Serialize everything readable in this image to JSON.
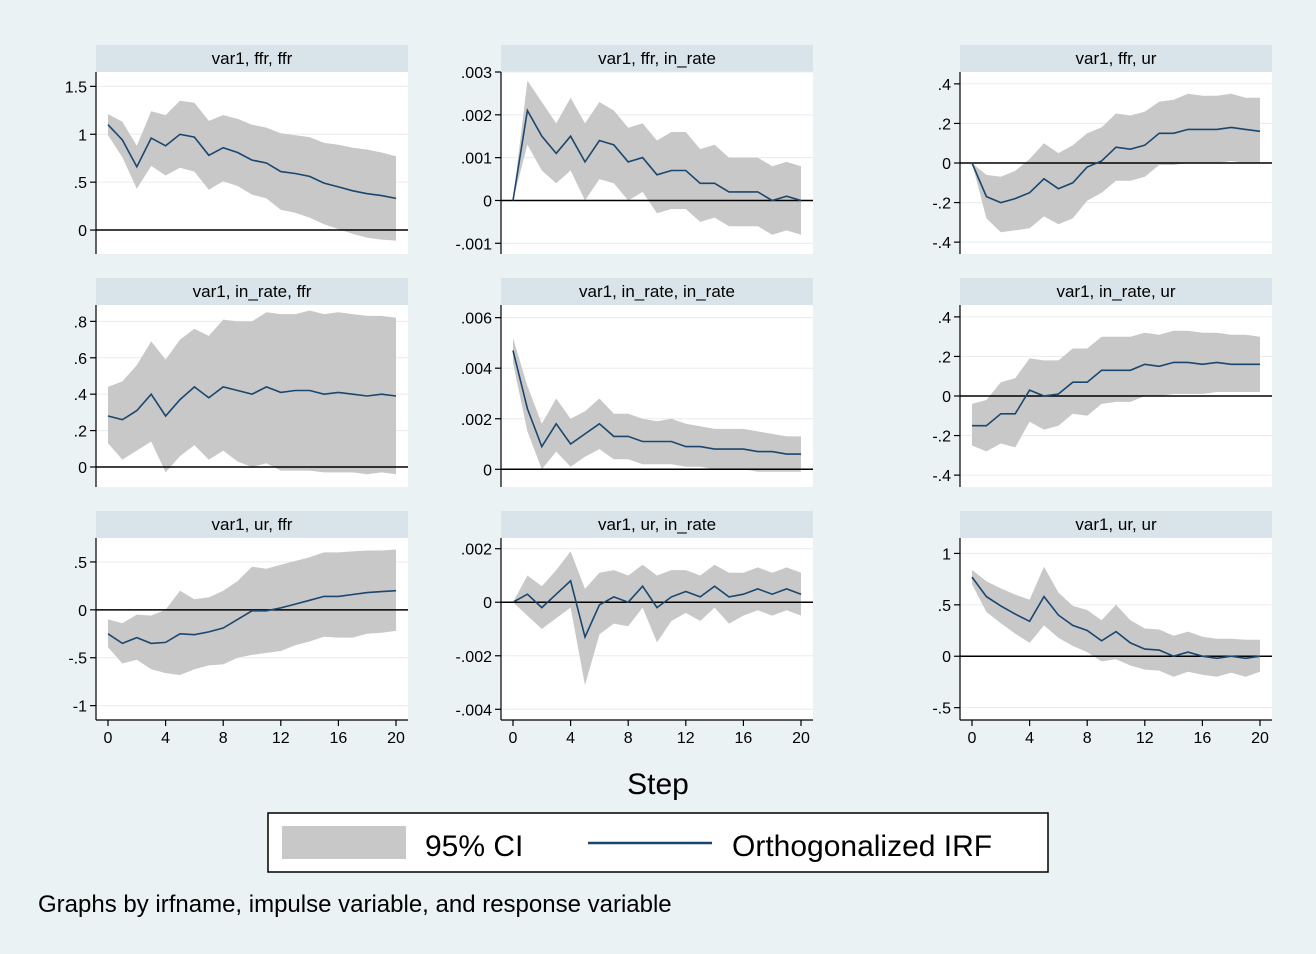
{
  "figure": {
    "xlabel": "Step",
    "note": "Graphs by irfname, impulse variable, and response variable",
    "legend": {
      "ci_label": "95% CI",
      "irf_label": "Orthogonalized IRF"
    },
    "colors": {
      "background": "#eaf2f3",
      "plot_area": "#ffffff",
      "title_strip": "#d8e4ea",
      "ci_band": "#c8c8c8",
      "irf_line": "#1a476f",
      "zero_line": "#000000",
      "grid": "#e6ecef"
    }
  },
  "chart_data": [
    {
      "type": "area",
      "title": "var1, ffr, ffr",
      "x": [
        0,
        1,
        2,
        3,
        4,
        5,
        6,
        7,
        8,
        9,
        10,
        11,
        12,
        13,
        14,
        15,
        16,
        17,
        18,
        19,
        20
      ],
      "xticks": [
        "0",
        "4",
        "8",
        "12",
        "16",
        "20"
      ],
      "xlim": [
        0,
        20
      ],
      "ylim": [
        -0.25,
        1.65
      ],
      "yticks": [
        0,
        0.5,
        1,
        1.5
      ],
      "yticklabels": [
        "0",
        ".5",
        "1",
        "1.5"
      ],
      "series": [
        {
          "name": "Orthogonalized IRF",
          "values": [
            1.1,
            0.94,
            0.66,
            0.96,
            0.88,
            1.0,
            0.97,
            0.78,
            0.86,
            0.81,
            0.73,
            0.7,
            0.61,
            0.59,
            0.56,
            0.49,
            0.45,
            0.41,
            0.38,
            0.36,
            0.33
          ]
        },
        {
          "name": "95% CI",
          "lower": [
            0.99,
            0.76,
            0.43,
            0.67,
            0.57,
            0.65,
            0.61,
            0.42,
            0.51,
            0.46,
            0.37,
            0.33,
            0.21,
            0.18,
            0.13,
            0.06,
            0.01,
            -0.04,
            -0.08,
            -0.1,
            -0.11
          ],
          "upper": [
            1.21,
            1.13,
            0.88,
            1.24,
            1.2,
            1.35,
            1.33,
            1.14,
            1.2,
            1.16,
            1.1,
            1.07,
            1.01,
            0.99,
            0.97,
            0.91,
            0.89,
            0.86,
            0.84,
            0.81,
            0.77
          ]
        }
      ]
    },
    {
      "type": "area",
      "title": "var1, ffr, in_rate",
      "x": [
        0,
        1,
        2,
        3,
        4,
        5,
        6,
        7,
        8,
        9,
        10,
        11,
        12,
        13,
        14,
        15,
        16,
        17,
        18,
        19,
        20
      ],
      "xticks": [
        "0",
        "4",
        "8",
        "12",
        "16",
        "20"
      ],
      "xlim": [
        0,
        20
      ],
      "ylim": [
        -0.00125,
        0.003
      ],
      "yticks": [
        -0.001,
        0,
        0.001,
        0.002,
        0.003
      ],
      "yticklabels": [
        "-.001",
        "0",
        ".001",
        ".002",
        ".003"
      ],
      "series": [
        {
          "name": "Orthogonalized IRF",
          "values": [
            0,
            0.0021,
            0.0015,
            0.0011,
            0.0015,
            0.0009,
            0.0014,
            0.0013,
            0.0009,
            0.001,
            0.0006,
            0.0007,
            0.0007,
            0.0004,
            0.0004,
            0.0002,
            0.0002,
            0.0002,
            0.0,
            0.0001,
            0.0
          ]
        },
        {
          "name": "95% CI",
          "lower": [
            0,
            0.0013,
            0.0007,
            0.0004,
            0.0007,
            0.0,
            0.0005,
            0.0004,
            0.0,
            0.0002,
            -0.0003,
            -0.0002,
            -0.0002,
            -0.0005,
            -0.0004,
            -0.0006,
            -0.0006,
            -0.0006,
            -0.0008,
            -0.0007,
            -0.0008
          ],
          "upper": [
            0,
            0.0028,
            0.0023,
            0.0018,
            0.0024,
            0.0018,
            0.0023,
            0.0021,
            0.0017,
            0.0018,
            0.0014,
            0.0016,
            0.0016,
            0.0012,
            0.0013,
            0.001,
            0.001,
            0.001,
            0.0008,
            0.0009,
            0.0008
          ]
        }
      ]
    },
    {
      "type": "area",
      "title": "var1, ffr, ur",
      "x": [
        0,
        1,
        2,
        3,
        4,
        5,
        6,
        7,
        8,
        9,
        10,
        11,
        12,
        13,
        14,
        15,
        16,
        17,
        18,
        19,
        20
      ],
      "xticks": [
        "0",
        "4",
        "8",
        "12",
        "16",
        "20"
      ],
      "xlim": [
        0,
        20
      ],
      "ylim": [
        -0.46,
        0.46
      ],
      "yticks": [
        -0.4,
        -0.2,
        0,
        0.2,
        0.4
      ],
      "yticklabels": [
        "-.4",
        "-.2",
        "0",
        ".2",
        ".4"
      ],
      "series": [
        {
          "name": "Orthogonalized IRF",
          "values": [
            0,
            -0.17,
            -0.2,
            -0.18,
            -0.15,
            -0.08,
            -0.13,
            -0.1,
            -0.02,
            0.01,
            0.08,
            0.07,
            0.09,
            0.15,
            0.15,
            0.17,
            0.17,
            0.17,
            0.18,
            0.17,
            0.16
          ]
        },
        {
          "name": "95% CI",
          "lower": [
            0,
            -0.28,
            -0.35,
            -0.34,
            -0.33,
            -0.27,
            -0.31,
            -0.28,
            -0.19,
            -0.15,
            -0.09,
            -0.09,
            -0.07,
            -0.01,
            -0.01,
            0.0,
            0.0,
            0.0,
            0.01,
            0.0,
            0.0
          ],
          "upper": [
            0,
            -0.06,
            -0.07,
            -0.04,
            0.02,
            0.1,
            0.05,
            0.09,
            0.15,
            0.18,
            0.25,
            0.24,
            0.26,
            0.31,
            0.32,
            0.35,
            0.34,
            0.34,
            0.35,
            0.33,
            0.33
          ]
        }
      ]
    },
    {
      "type": "area",
      "title": "var1, in_rate, ffr",
      "x": [
        0,
        1,
        2,
        3,
        4,
        5,
        6,
        7,
        8,
        9,
        10,
        11,
        12,
        13,
        14,
        15,
        16,
        17,
        18,
        19,
        20
      ],
      "xticks": [
        "0",
        "4",
        "8",
        "12",
        "16",
        "20"
      ],
      "xlim": [
        0,
        20
      ],
      "ylim": [
        -0.11,
        0.89
      ],
      "yticks": [
        0,
        0.2,
        0.4,
        0.6,
        0.8
      ],
      "yticklabels": [
        "0",
        ".2",
        ".4",
        ".6",
        ".8"
      ],
      "series": [
        {
          "name": "Orthogonalized IRF",
          "values": [
            0.28,
            0.26,
            0.31,
            0.4,
            0.28,
            0.37,
            0.44,
            0.38,
            0.44,
            0.42,
            0.4,
            0.44,
            0.41,
            0.42,
            0.42,
            0.4,
            0.41,
            0.4,
            0.39,
            0.4,
            0.39
          ]
        },
        {
          "name": "95% CI",
          "lower": [
            0.13,
            0.04,
            0.09,
            0.14,
            -0.03,
            0.06,
            0.12,
            0.04,
            0.09,
            0.03,
            0.0,
            0.02,
            -0.02,
            -0.02,
            -0.02,
            -0.03,
            -0.03,
            -0.03,
            -0.04,
            -0.03,
            -0.04
          ],
          "upper": [
            0.44,
            0.47,
            0.56,
            0.69,
            0.59,
            0.7,
            0.76,
            0.72,
            0.81,
            0.8,
            0.8,
            0.85,
            0.84,
            0.84,
            0.86,
            0.84,
            0.85,
            0.84,
            0.83,
            0.83,
            0.82
          ]
        }
      ]
    },
    {
      "type": "area",
      "title": "var1, in_rate, in_rate",
      "x": [
        0,
        1,
        2,
        3,
        4,
        5,
        6,
        7,
        8,
        9,
        10,
        11,
        12,
        13,
        14,
        15,
        16,
        17,
        18,
        19,
        20
      ],
      "xticks": [
        "0",
        "4",
        "8",
        "12",
        "16",
        "20"
      ],
      "xlim": [
        0,
        20
      ],
      "ylim": [
        -0.0007,
        0.0065
      ],
      "yticks": [
        0,
        0.002,
        0.004,
        0.006
      ],
      "yticklabels": [
        "0",
        ".002",
        ".004",
        ".006"
      ],
      "series": [
        {
          "name": "Orthogonalized IRF",
          "values": [
            0.0047,
            0.0024,
            0.0009,
            0.0018,
            0.001,
            0.0014,
            0.0018,
            0.0013,
            0.0013,
            0.0011,
            0.0011,
            0.0011,
            0.0009,
            0.0009,
            0.0008,
            0.0008,
            0.0008,
            0.0007,
            0.0007,
            0.0006,
            0.0006
          ]
        },
        {
          "name": "95% CI",
          "lower": [
            0.0042,
            0.0015,
            0.0,
            0.0007,
            0.0001,
            0.0005,
            0.0008,
            0.0004,
            0.0004,
            0.0002,
            0.0002,
            0.0002,
            0.0001,
            0.0001,
            0.0,
            0.0,
            0.0,
            -0.0001,
            -0.0001,
            -0.0001,
            -0.0001
          ],
          "upper": [
            0.0052,
            0.0033,
            0.0018,
            0.0028,
            0.002,
            0.0023,
            0.0028,
            0.0022,
            0.0022,
            0.002,
            0.0019,
            0.002,
            0.0018,
            0.0017,
            0.0016,
            0.0016,
            0.0016,
            0.0015,
            0.0014,
            0.0013,
            0.0013
          ]
        }
      ]
    },
    {
      "type": "area",
      "title": "var1, in_rate, ur",
      "x": [
        0,
        1,
        2,
        3,
        4,
        5,
        6,
        7,
        8,
        9,
        10,
        11,
        12,
        13,
        14,
        15,
        16,
        17,
        18,
        19,
        20
      ],
      "xticks": [
        "0",
        "4",
        "8",
        "12",
        "16",
        "20"
      ],
      "xlim": [
        0,
        20
      ],
      "ylim": [
        -0.46,
        0.46
      ],
      "yticks": [
        -0.4,
        -0.2,
        0,
        0.2,
        0.4
      ],
      "yticklabels": [
        "-.4",
        "-.2",
        "0",
        ".2",
        ".4"
      ],
      "series": [
        {
          "name": "Orthogonalized IRF",
          "values": [
            -0.15,
            -0.15,
            -0.09,
            -0.09,
            0.03,
            0.0,
            0.01,
            0.07,
            0.07,
            0.13,
            0.13,
            0.13,
            0.16,
            0.15,
            0.17,
            0.17,
            0.16,
            0.17,
            0.16,
            0.16,
            0.16
          ]
        },
        {
          "name": "95% CI",
          "lower": [
            -0.25,
            -0.28,
            -0.24,
            -0.26,
            -0.13,
            -0.17,
            -0.15,
            -0.09,
            -0.1,
            -0.04,
            -0.03,
            -0.03,
            0.0,
            0.0,
            0.01,
            0.01,
            0.01,
            0.02,
            0.02,
            0.02,
            0.02
          ],
          "upper": [
            -0.04,
            -0.02,
            0.07,
            0.09,
            0.19,
            0.18,
            0.18,
            0.24,
            0.24,
            0.3,
            0.3,
            0.3,
            0.32,
            0.31,
            0.33,
            0.33,
            0.32,
            0.32,
            0.31,
            0.31,
            0.3
          ]
        }
      ]
    },
    {
      "type": "area",
      "title": "var1, ur, ffr",
      "x": [
        0,
        1,
        2,
        3,
        4,
        5,
        6,
        7,
        8,
        9,
        10,
        11,
        12,
        13,
        14,
        15,
        16,
        17,
        18,
        19,
        20
      ],
      "xticks": [
        "0",
        "4",
        "8",
        "12",
        "16",
        "20"
      ],
      "xlim": [
        0,
        20
      ],
      "ylim": [
        -1.15,
        0.75
      ],
      "yticks": [
        -1,
        -0.5,
        0,
        0.5
      ],
      "yticklabels": [
        "-1",
        "-.5",
        "0",
        ".5"
      ],
      "series": [
        {
          "name": "Orthogonalized IRF",
          "values": [
            -0.25,
            -0.35,
            -0.29,
            -0.35,
            -0.34,
            -0.25,
            -0.26,
            -0.23,
            -0.19,
            -0.1,
            -0.01,
            -0.01,
            0.02,
            0.06,
            0.1,
            0.14,
            0.14,
            0.16,
            0.18,
            0.19,
            0.2
          ]
        },
        {
          "name": "95% CI",
          "lower": [
            -0.39,
            -0.56,
            -0.52,
            -0.62,
            -0.66,
            -0.68,
            -0.62,
            -0.58,
            -0.57,
            -0.5,
            -0.47,
            -0.45,
            -0.43,
            -0.37,
            -0.33,
            -0.28,
            -0.29,
            -0.29,
            -0.25,
            -0.24,
            -0.22
          ],
          "upper": [
            -0.1,
            -0.14,
            -0.05,
            -0.06,
            0.0,
            0.2,
            0.11,
            0.13,
            0.2,
            0.3,
            0.45,
            0.43,
            0.47,
            0.51,
            0.55,
            0.6,
            0.6,
            0.61,
            0.62,
            0.62,
            0.63
          ]
        }
      ]
    },
    {
      "type": "area",
      "title": "var1, ur, in_rate",
      "x": [
        0,
        1,
        2,
        3,
        4,
        5,
        6,
        7,
        8,
        9,
        10,
        11,
        12,
        13,
        14,
        15,
        16,
        17,
        18,
        19,
        20
      ],
      "xticks": [
        "0",
        "4",
        "8",
        "12",
        "16",
        "20"
      ],
      "xlim": [
        0,
        20
      ],
      "ylim": [
        -0.0044,
        0.0024
      ],
      "yticks": [
        -0.004,
        -0.002,
        0,
        0.002
      ],
      "yticklabels": [
        "-.004",
        "-.002",
        "0",
        ".002"
      ],
      "series": [
        {
          "name": "Orthogonalized IRF",
          "values": [
            0,
            0.0003,
            -0.0002,
            0.0003,
            0.0008,
            -0.0013,
            -0.0001,
            0.0002,
            0.0,
            0.0006,
            -0.0002,
            0.0002,
            0.0004,
            0.0002,
            0.0006,
            0.0002,
            0.0003,
            0.0005,
            0.0003,
            0.0005,
            0.0003
          ]
        },
        {
          "name": "95% CI",
          "lower": [
            0,
            -0.0005,
            -0.001,
            -0.0006,
            -0.0002,
            -0.0031,
            -0.0012,
            -0.0008,
            -0.0009,
            -0.0002,
            -0.0015,
            -0.0007,
            -0.0004,
            -0.0007,
            -0.0002,
            -0.0008,
            -0.0005,
            -0.0003,
            -0.0005,
            -0.0003,
            -0.0005
          ],
          "upper": [
            0,
            0.001,
            0.0006,
            0.0012,
            0.0019,
            0.0005,
            0.0011,
            0.0012,
            0.001,
            0.0014,
            0.001,
            0.0012,
            0.0012,
            0.001,
            0.0014,
            0.0011,
            0.0011,
            0.0013,
            0.0011,
            0.0013,
            0.0011
          ]
        }
      ]
    },
    {
      "type": "area",
      "title": "var1, ur, ur",
      "x": [
        0,
        1,
        2,
        3,
        4,
        5,
        6,
        7,
        8,
        9,
        10,
        11,
        12,
        13,
        14,
        15,
        16,
        17,
        18,
        19,
        20
      ],
      "xticks": [
        "0",
        "4",
        "8",
        "12",
        "16",
        "20"
      ],
      "xlim": [
        0,
        20
      ],
      "ylim": [
        -0.62,
        1.15
      ],
      "yticks": [
        -0.5,
        0,
        0.5,
        1
      ],
      "yticklabels": [
        "-.5",
        "0",
        ".5",
        "1"
      ],
      "series": [
        {
          "name": "Orthogonalized IRF",
          "values": [
            0.77,
            0.58,
            0.49,
            0.41,
            0.34,
            0.58,
            0.4,
            0.3,
            0.25,
            0.15,
            0.24,
            0.13,
            0.07,
            0.06,
            0.0,
            0.04,
            0.0,
            -0.02,
            0.0,
            -0.02,
            0.0
          ]
        },
        {
          "name": "95% CI",
          "lower": [
            0.7,
            0.43,
            0.32,
            0.22,
            0.13,
            0.3,
            0.18,
            0.1,
            0.04,
            -0.05,
            -0.03,
            -0.09,
            -0.13,
            -0.14,
            -0.2,
            -0.15,
            -0.18,
            -0.2,
            -0.16,
            -0.2,
            -0.15
          ],
          "upper": [
            0.84,
            0.73,
            0.66,
            0.6,
            0.55,
            0.87,
            0.62,
            0.49,
            0.45,
            0.35,
            0.5,
            0.35,
            0.27,
            0.26,
            0.2,
            0.24,
            0.19,
            0.17,
            0.17,
            0.16,
            0.16
          ]
        }
      ]
    }
  ]
}
